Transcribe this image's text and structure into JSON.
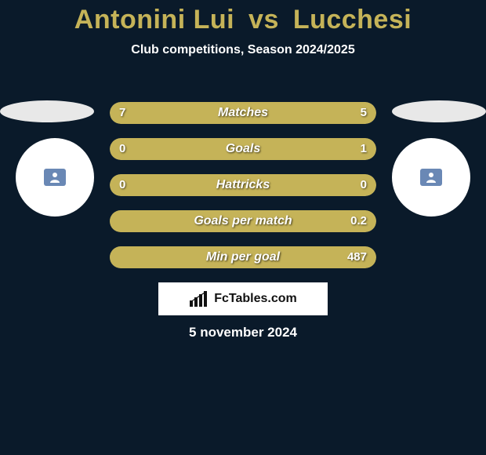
{
  "meta": {
    "background_color": "#0a1a2a",
    "accent_color": "#c5b358",
    "bar_bg_color": "#2a3a4a",
    "bar_left_color": "#c5b358",
    "bar_right_color": "#c5b358",
    "text_shadow": "1px 1px 2px rgba(0,0,0,0.7)"
  },
  "title": {
    "player1": "Antonini Lui",
    "vs": "vs",
    "player2": "Lucchesi"
  },
  "subtitle": "Club competitions, Season 2024/2025",
  "clubs": {
    "left": {
      "oval_color": "#e8e8e8"
    },
    "right": {
      "oval_color": "#e8e8e8"
    }
  },
  "players": {
    "left": {
      "circle_color": "#ffffff",
      "badge_color": "#6a88b5"
    },
    "right": {
      "circle_color": "#ffffff",
      "badge_color": "#6a88b5"
    }
  },
  "rows": [
    {
      "label": "Matches",
      "left_value": "7",
      "right_value": "5",
      "left_pct": 45,
      "right_pct": 55
    },
    {
      "label": "Goals",
      "left_value": "0",
      "right_value": "1",
      "left_pct": 12,
      "right_pct": 88
    },
    {
      "label": "Hattricks",
      "left_value": "0",
      "right_value": "0",
      "left_pct": 50,
      "right_pct": 50
    },
    {
      "label": "Goals per match",
      "left_value": "",
      "right_value": "0.2",
      "left_pct": 0,
      "right_pct": 100
    },
    {
      "label": "Min per goal",
      "left_value": "",
      "right_value": "487",
      "left_pct": 0,
      "right_pct": 100
    }
  ],
  "brand": {
    "text": "FcTables.com",
    "box_bg": "#ffffff"
  },
  "date": "5 november 2024"
}
